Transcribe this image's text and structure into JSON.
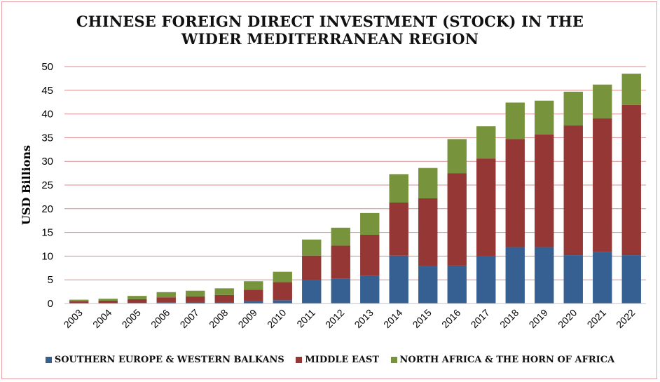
{
  "chart_data": {
    "type": "bar",
    "stacked": true,
    "title_lines": [
      "CHINESE FOREIGN DIRECT INVESTMENT (STOCK) IN THE",
      "WIDER MEDITERRANEAN REGION"
    ],
    "ylabel": "USD Billions",
    "xlabel": "",
    "ylim": [
      0,
      50
    ],
    "yticks": [
      0,
      5,
      10,
      15,
      20,
      25,
      30,
      35,
      40,
      45,
      50
    ],
    "grid": true,
    "legend_position": "bottom",
    "categories": [
      "2003",
      "2004",
      "2005",
      "2006",
      "2007",
      "2008",
      "2009",
      "2010",
      "2011",
      "2012",
      "2013",
      "2014",
      "2015",
      "2016",
      "2017",
      "2018",
      "2019",
      "2020",
      "2021",
      "2022"
    ],
    "series": [
      {
        "name": "SOUTHERN EUROPE & WESTERN BALKANS",
        "color": "#376092",
        "values": [
          0.05,
          0.05,
          0.1,
          0.2,
          0.3,
          0.3,
          0.5,
          0.7,
          4.9,
          5.2,
          5.8,
          10.1,
          7.9,
          8.0,
          10.0,
          11.9,
          11.9,
          10.2,
          10.9,
          10.2
        ]
      },
      {
        "name": "MIDDLE EAST",
        "color": "#953735",
        "values": [
          0.45,
          0.55,
          0.8,
          1.1,
          1.2,
          1.5,
          2.4,
          3.8,
          5.2,
          7.0,
          8.7,
          11.2,
          14.3,
          19.5,
          20.6,
          22.8,
          23.8,
          27.4,
          28.2,
          31.7
        ]
      },
      {
        "name": "NORTH AFRICA & THE HORN OF AFRICA",
        "color": "#77933c",
        "values": [
          0.3,
          0.4,
          0.7,
          1.1,
          1.2,
          1.4,
          1.8,
          2.2,
          3.4,
          3.8,
          4.6,
          6.0,
          6.4,
          7.2,
          6.8,
          7.7,
          7.1,
          7.1,
          7.1,
          6.6
        ]
      }
    ]
  }
}
